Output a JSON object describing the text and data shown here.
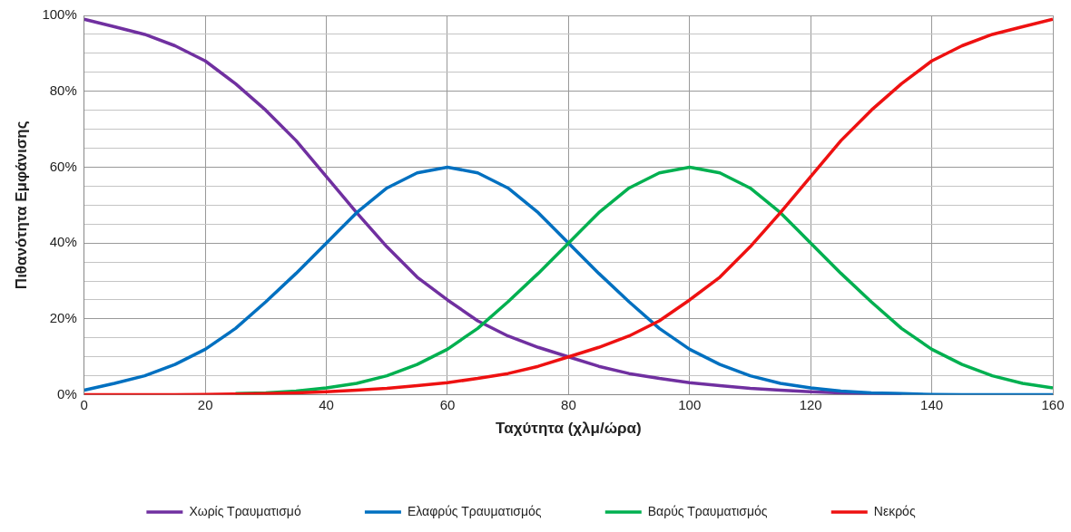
{
  "chart_data": {
    "type": "line",
    "xlabel": "Ταχύτητα (χλμ/ώρα)",
    "ylabel": "Πιθανότητα Εμφάνισης",
    "x": [
      0,
      5,
      10,
      15,
      20,
      25,
      30,
      35,
      40,
      45,
      50,
      55,
      60,
      65,
      70,
      75,
      80,
      85,
      90,
      95,
      100,
      105,
      110,
      115,
      120,
      125,
      130,
      135,
      140,
      145,
      150,
      155,
      160
    ],
    "series": [
      {
        "name": "Χωρίς Τραυματισμό",
        "color": "#7030a0",
        "values": [
          99,
          97,
          95,
          92,
          88,
          82,
          75,
          67,
          57.5,
          48,
          39,
          31,
          25,
          19.5,
          15.5,
          12.5,
          10,
          7.5,
          5.6,
          4.3,
          3.2,
          2.4,
          1.7,
          1.2,
          0.8,
          0.5,
          0.3,
          0.2,
          null,
          null,
          null,
          null,
          null
        ]
      },
      {
        "name": "Ελαφρύς Τραυματισμός",
        "color": "#0070c0",
        "values": [
          1.2,
          3,
          5,
          8,
          12,
          17.5,
          24.5,
          32,
          40,
          48,
          54.5,
          58.5,
          60,
          58.5,
          54.5,
          48,
          40,
          32,
          24.5,
          17.5,
          12,
          8,
          5,
          3,
          1.8,
          1,
          0.5,
          0.3,
          0.1,
          0,
          0,
          0,
          0
        ]
      },
      {
        "name": "Βαρύς Τραυματισμός",
        "color": "#00b050",
        "values": [
          null,
          null,
          null,
          null,
          null,
          0.3,
          0.5,
          1,
          1.8,
          3,
          5,
          8,
          12,
          17.5,
          24.5,
          32,
          40,
          48,
          54.5,
          58.5,
          60,
          58.5,
          54.5,
          48,
          40,
          32,
          24.5,
          17.5,
          12,
          8,
          5,
          3,
          1.8
        ]
      },
      {
        "name": "Νεκρός",
        "color": "#ee1111",
        "values": [
          0,
          0,
          0,
          0,
          0.1,
          0.2,
          0.3,
          0.5,
          0.8,
          1.2,
          1.7,
          2.4,
          3.2,
          4.3,
          5.6,
          7.5,
          10,
          12.5,
          15.5,
          19.5,
          25,
          31,
          39,
          48,
          57.5,
          67,
          75,
          82,
          88,
          92,
          95,
          97,
          99
        ]
      }
    ],
    "xlim": [
      0,
      160
    ],
    "xticks": [
      0,
      20,
      40,
      60,
      80,
      100,
      120,
      140,
      160
    ],
    "ylim": [
      0,
      100
    ],
    "yticks": [
      {
        "value": 0,
        "label": "0%"
      },
      {
        "value": 5,
        "label": null
      },
      {
        "value": 10,
        "label": null
      },
      {
        "value": 15,
        "label": null
      },
      {
        "value": 20,
        "label": "20%"
      },
      {
        "value": 25,
        "label": null
      },
      {
        "value": 30,
        "label": null
      },
      {
        "value": 35,
        "label": null
      },
      {
        "value": 40,
        "label": "40%"
      },
      {
        "value": 45,
        "label": null
      },
      {
        "value": 50,
        "label": null
      },
      {
        "value": 55,
        "label": null
      },
      {
        "value": 60,
        "label": "60%"
      },
      {
        "value": 65,
        "label": null
      },
      {
        "value": 70,
        "label": null
      },
      {
        "value": 75,
        "label": null
      },
      {
        "value": 80,
        "label": "80%"
      },
      {
        "value": 85,
        "label": null
      },
      {
        "value": 90,
        "label": null
      },
      {
        "value": 95,
        "label": null
      },
      {
        "value": 100,
        "label": "100%"
      }
    ],
    "grid": true,
    "legend": "bottom",
    "marker": "none",
    "line_style": "solid"
  }
}
